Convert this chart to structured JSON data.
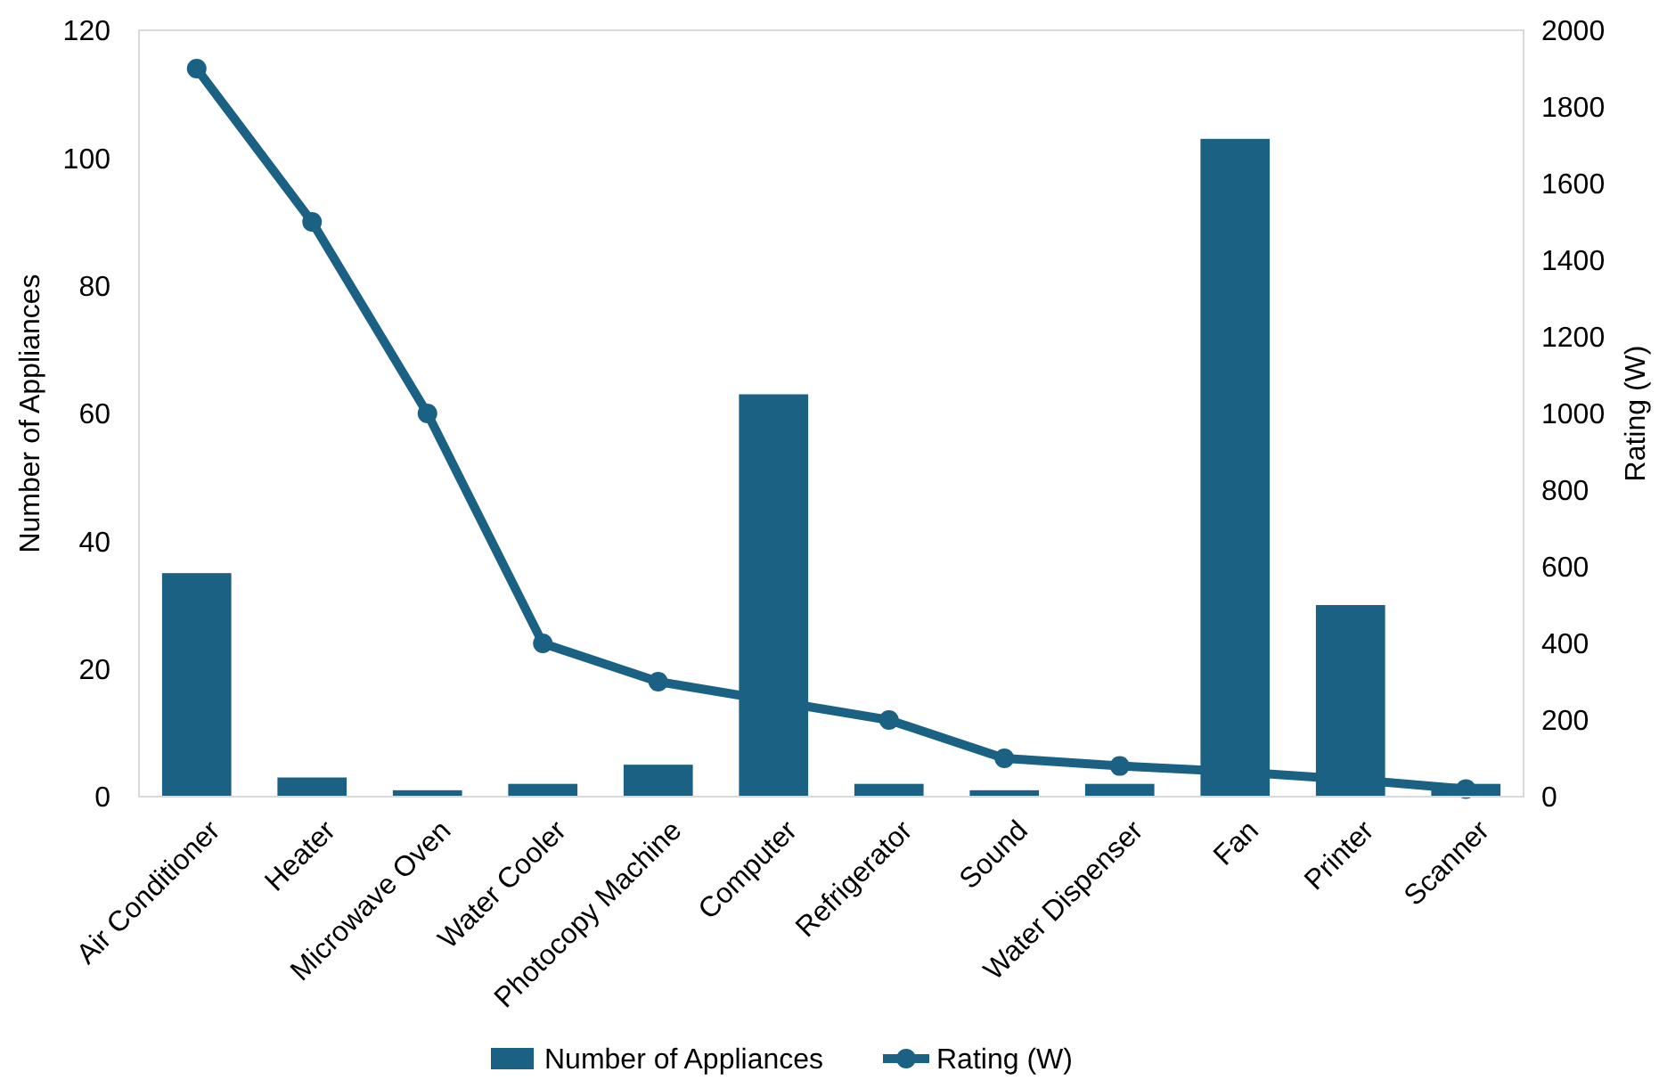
{
  "chart_data": {
    "type": "bar",
    "categories": [
      "Air Conditioner",
      "Heater",
      "Microwave Oven",
      "Water Cooler",
      "Photocopy Machine",
      "Computer",
      "Refrigerator",
      "Sound",
      "Water Dispenser",
      "Fan",
      "Printer",
      "Scanner"
    ],
    "series": [
      {
        "name": "Number of Appliances",
        "color": "#1a6183",
        "values": [
          35,
          3,
          1,
          2,
          5,
          63,
          2,
          1,
          2,
          103,
          30,
          2
        ]
      },
      {
        "name": "Rating (W)",
        "type": "line",
        "axis": "y2",
        "color": "#1a6183",
        "marker": "circle",
        "values": [
          1900,
          1500,
          1000,
          400,
          300,
          250,
          200,
          100,
          80,
          65,
          45,
          20
        ]
      }
    ],
    "ylabel": "Number of Appliances",
    "y2label": "Rating (W)",
    "ylim": [
      0,
      120
    ],
    "yticks": [
      0,
      20,
      40,
      60,
      80,
      100,
      120
    ],
    "y2lim": [
      0,
      2000
    ],
    "y2ticks": [
      0,
      200,
      400,
      600,
      800,
      1000,
      1200,
      1400,
      1600,
      1800,
      2000
    ],
    "legend": "bottom",
    "grid": false
  }
}
